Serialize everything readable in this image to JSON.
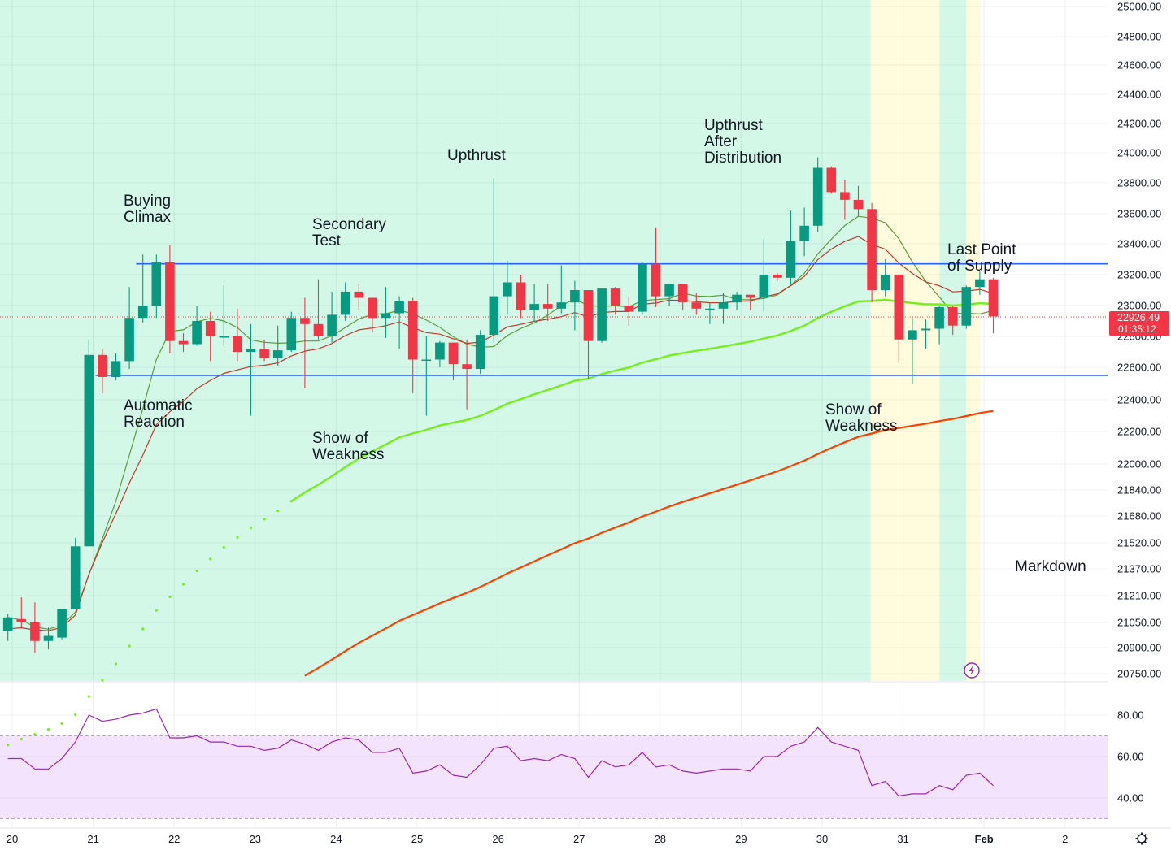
{
  "colors": {
    "up": "#089981",
    "down": "#f23645",
    "bg_green": "#d3f8e8",
    "bg_yellow": "#fffbdc",
    "rsi_band": "#f3e3fd",
    "rsi_line": "#9c27b0",
    "level_line": "#2962ff",
    "ma_fast": "#5a9e3c",
    "ma_mid": "#c0392b",
    "ma_light": "#76ee1b",
    "ma_slow": "#ff4000",
    "price_tag": "#f23645"
  },
  "icons": {
    "settings": "gear-icon",
    "replay": "lightning-icon"
  },
  "chart_data": [
    {
      "type": "candlestick",
      "price_axis_ticks": [
        25000.0,
        24800.0,
        24600.0,
        24400.0,
        24200.0,
        24000.0,
        23800.0,
        23600.0,
        23400.0,
        23200.0,
        23000.0,
        22800.0,
        22600.0,
        22400.0,
        22200.0,
        22000.0,
        21840.0,
        21680.0,
        21520.0,
        21370.0,
        21210.0,
        21050.0,
        20900.0,
        20750.0
      ],
      "date_ticks": [
        "20",
        "21",
        "22",
        "23",
        "24",
        "25",
        "26",
        "27",
        "28",
        "29",
        "30",
        "31",
        "Feb",
        "2"
      ],
      "last_price": "22926.49",
      "countdown": "01:35:12",
      "levels": [
        23270,
        22550
      ],
      "annotations": [
        "Buying\nClimax",
        "Automatic\nReaction",
        "Secondary\nTest",
        "Show of\nWeakness",
        "Upthrust",
        "Upthrust\nAfter\nDistribution",
        "Show of\nWeakness",
        "Last Point\nof Supply",
        "Markdown"
      ],
      "background_zones": [
        {
          "from_day": 19.5,
          "to_day": 30.6,
          "kind": "green"
        },
        {
          "from_day": 30.6,
          "to_day": 31.45,
          "kind": "yellow"
        },
        {
          "from_day": 31.45,
          "to_day": 31.78,
          "kind": "green"
        },
        {
          "from_day": 31.78,
          "to_day": 31.95,
          "kind": "yellow"
        }
      ],
      "candles_ohlc": [
        [
          21000,
          21100,
          20940,
          21080
        ],
        [
          21070,
          21200,
          21020,
          21050
        ],
        [
          21050,
          21170,
          20870,
          20940
        ],
        [
          20940,
          21020,
          20890,
          20970
        ],
        [
          20960,
          21130,
          20950,
          21130
        ],
        [
          21130,
          21550,
          21130,
          21500
        ],
        [
          21500,
          22780,
          21500,
          22680
        ],
        [
          22680,
          22720,
          22440,
          22540
        ],
        [
          22540,
          22690,
          22520,
          22640
        ],
        [
          22640,
          23120,
          22590,
          22920
        ],
        [
          22920,
          23330,
          22890,
          23000
        ],
        [
          23000,
          23330,
          22920,
          23280
        ],
        [
          23280,
          23390,
          22690,
          22770
        ],
        [
          22770,
          22820,
          22700,
          22750
        ],
        [
          22750,
          23000,
          22740,
          22900
        ],
        [
          22900,
          22960,
          22640,
          22800
        ],
        [
          22800,
          23130,
          22740,
          22800
        ],
        [
          22800,
          22980,
          22640,
          22700
        ],
        [
          22700,
          22880,
          22300,
          22720
        ],
        [
          22720,
          22780,
          22640,
          22660
        ],
        [
          22660,
          22870,
          22610,
          22710
        ],
        [
          22710,
          22960,
          22700,
          22920
        ],
        [
          22920,
          23050,
          22470,
          22880
        ],
        [
          22880,
          23170,
          22780,
          22800
        ],
        [
          22800,
          23090,
          22760,
          22940
        ],
        [
          22940,
          23150,
          22900,
          23090
        ],
        [
          23090,
          23140,
          22970,
          23050
        ],
        [
          23050,
          23040,
          22830,
          22920
        ],
        [
          22920,
          23120,
          22790,
          22950
        ],
        [
          22950,
          23060,
          22720,
          23030
        ],
        [
          23030,
          23050,
          22440,
          22650
        ],
        [
          22650,
          22800,
          22300,
          22650
        ],
        [
          22650,
          22770,
          22600,
          22760
        ],
        [
          22760,
          22760,
          22520,
          22620
        ],
        [
          22620,
          22780,
          22340,
          22590
        ],
        [
          22590,
          22840,
          22560,
          22810
        ],
        [
          22810,
          23830,
          22760,
          23060
        ],
        [
          23060,
          23290,
          22940,
          23150
        ],
        [
          23150,
          23200,
          22920,
          22970
        ],
        [
          22970,
          23140,
          22900,
          23010
        ],
        [
          23010,
          23140,
          22900,
          22980
        ],
        [
          22980,
          23260,
          22950,
          23020
        ],
        [
          23020,
          23160,
          22840,
          23100
        ],
        [
          23100,
          23100,
          22530,
          22770
        ],
        [
          22770,
          23110,
          22760,
          23110
        ],
        [
          23110,
          23120,
          22940,
          23000
        ],
        [
          23000,
          23060,
          22870,
          22960
        ],
        [
          22960,
          23280,
          22940,
          23270
        ],
        [
          23270,
          23510,
          22990,
          23060
        ],
        [
          23060,
          23140,
          23000,
          23140
        ],
        [
          23140,
          23140,
          22970,
          23020
        ],
        [
          23020,
          23080,
          22940,
          22980
        ],
        [
          22980,
          23020,
          22880,
          22980
        ],
        [
          22980,
          23080,
          22880,
          23020
        ],
        [
          23020,
          23090,
          22970,
          23070
        ],
        [
          23070,
          23060,
          22970,
          23050
        ],
        [
          23050,
          23430,
          22960,
          23200
        ],
        [
          23200,
          23210,
          23160,
          23180
        ],
        [
          23180,
          23620,
          23140,
          23420
        ],
        [
          23420,
          23640,
          23320,
          23520
        ],
        [
          23520,
          23970,
          23480,
          23900
        ],
        [
          23900,
          23910,
          23730,
          23740
        ],
        [
          23740,
          23820,
          23560,
          23690
        ],
        [
          23690,
          23780,
          23580,
          23630
        ],
        [
          23630,
          23670,
          23020,
          23100
        ],
        [
          23100,
          23300,
          23060,
          23200
        ],
        [
          23200,
          23200,
          22630,
          22780
        ],
        [
          22780,
          22920,
          22500,
          22840
        ],
        [
          22840,
          22910,
          22720,
          22850
        ],
        [
          22850,
          23000,
          22750,
          22990
        ],
        [
          22990,
          23000,
          22810,
          22870
        ],
        [
          22870,
          23130,
          22850,
          23120
        ],
        [
          23120,
          23220,
          23070,
          23170
        ],
        [
          23170,
          23180,
          22820,
          22930
        ]
      ]
    },
    {
      "type": "line",
      "indicator": "RSI",
      "y_ticks": [
        80.0,
        60.0,
        40.0
      ],
      "band": [
        70,
        30
      ],
      "values": [
        59,
        59,
        54,
        54,
        59,
        67,
        80,
        77,
        78,
        80,
        81,
        83,
        69,
        69,
        70,
        67,
        67,
        65,
        65,
        63,
        64,
        68,
        66,
        63,
        67,
        69,
        68,
        62,
        62,
        64,
        52,
        53,
        56,
        51,
        50,
        56,
        64,
        65,
        58,
        59,
        58,
        61,
        59,
        50,
        58,
        55,
        56,
        62,
        55,
        56,
        53,
        52,
        53,
        54,
        54,
        53,
        60,
        60,
        65,
        67,
        74,
        67,
        65,
        63,
        46,
        48,
        41,
        42,
        42,
        46,
        44,
        51,
        52,
        46
      ]
    }
  ]
}
